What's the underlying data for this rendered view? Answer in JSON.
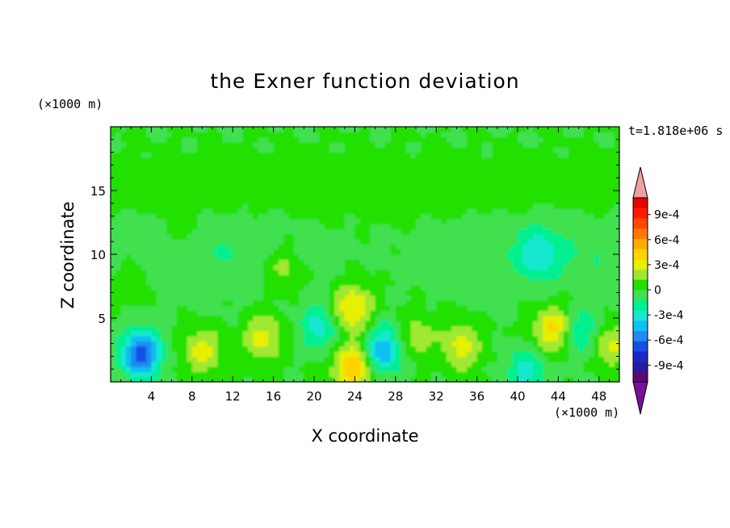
{
  "chart_data": {
    "type": "heatmap",
    "title": "the Exner function deviation",
    "xlabel": "X coordinate",
    "ylabel": "Z coordinate",
    "x_unit": "(×1000 m)",
    "y_unit": "(×1000 m)",
    "time_label": "t=1.818e+06 s",
    "xlim": [
      0,
      50
    ],
    "ylim": [
      0,
      20
    ],
    "x_ticks": [
      4,
      8,
      12,
      16,
      20,
      24,
      28,
      32,
      36,
      40,
      44,
      48
    ],
    "y_ticks": [
      5,
      10,
      15
    ],
    "colorbar": {
      "labels": [
        "9e-4",
        "6e-4",
        "3e-4",
        "0",
        "-3e-4",
        "-6e-4",
        "-9e-4"
      ],
      "label_values": [
        0.0009,
        0.0006,
        0.0003,
        0,
        -0.0003,
        -0.0006,
        -0.0009
      ],
      "range": [
        -0.0011,
        0.0011
      ],
      "levels_colors": [
        "#5a0a78",
        "#2a1aa0",
        "#1a28c8",
        "#1450e6",
        "#1e8cf0",
        "#10c0f0",
        "#18e8d0",
        "#00f090",
        "#40e050",
        "#20e000",
        "#a0e830",
        "#e6f000",
        "#ffd200",
        "#ffaa00",
        "#ff7800",
        "#ff4800",
        "#ff1800",
        "#e80000"
      ],
      "extend_low_color": "#7a109a",
      "extend_high_color": "#f0a0a0"
    },
    "features": [
      {
        "x": 3.0,
        "z": 2.2,
        "value": -0.0007
      },
      {
        "x": 26.8,
        "z": 2.5,
        "value": -0.0005
      },
      {
        "x": 23.8,
        "z": 5.8,
        "value": 0.0004
      },
      {
        "x": 23.8,
        "z": 1.2,
        "value": 0.0005
      },
      {
        "x": 43.5,
        "z": 4.2,
        "value": 0.0004
      },
      {
        "x": 15.0,
        "z": 3.5,
        "value": 0.0003
      },
      {
        "x": 9.0,
        "z": 2.5,
        "value": 0.0003
      },
      {
        "x": 34.5,
        "z": 2.8,
        "value": 0.0003
      },
      {
        "x": 49.0,
        "z": 3.0,
        "value": 0.0003
      },
      {
        "x": 30.0,
        "z": 3.5,
        "value": 0.0002
      },
      {
        "x": 40.8,
        "z": 0.8,
        "value": -0.0003
      },
      {
        "x": 20.5,
        "z": 4.3,
        "value": -0.0003
      },
      {
        "x": 46.5,
        "z": 3.8,
        "value": -0.0003
      },
      {
        "x": 42.0,
        "z": 10.0,
        "value": -0.00025
      },
      {
        "x": 7.0,
        "z": 12.2,
        "value": 0.00015
      },
      {
        "x": 17.0,
        "z": 9.0,
        "value": 0.0002
      },
      {
        "x": 2.0,
        "z": 8.0,
        "value": 0.00015
      }
    ]
  }
}
